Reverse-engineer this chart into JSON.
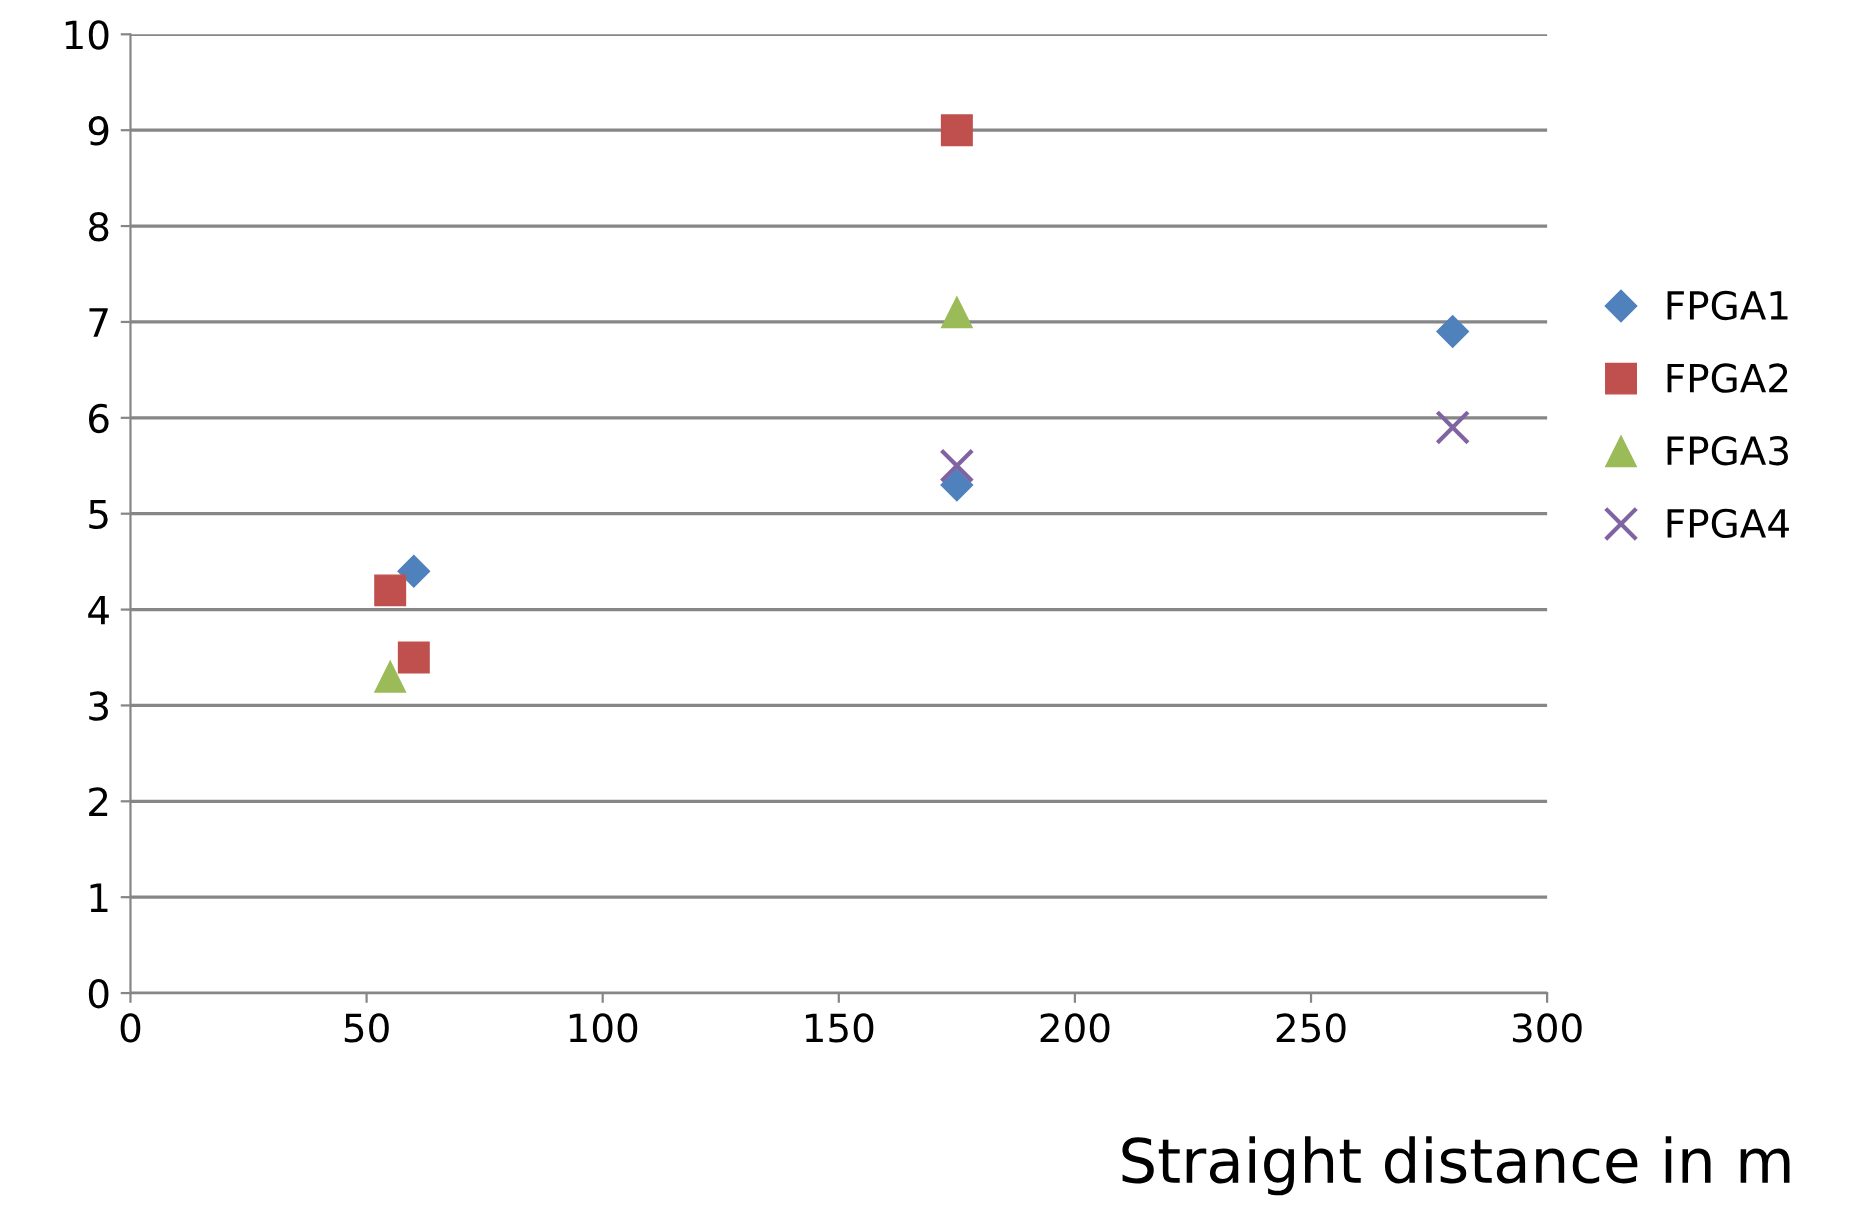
{
  "chart_data": {
    "type": "scatter",
    "xlabel": "Straight distance in m",
    "xlim": [
      0,
      300
    ],
    "xticks": [
      0,
      50,
      100,
      150,
      200,
      250,
      300
    ],
    "ylim": [
      0,
      10
    ],
    "yticks": [
      0,
      1,
      2,
      3,
      4,
      5,
      6,
      7,
      8,
      9,
      10
    ],
    "grid": "y",
    "legend": "right",
    "series": [
      {
        "name": "FPGA1",
        "color": "#4f81bd",
        "marker": "diamond",
        "x": [
          60,
          175,
          280
        ],
        "values": [
          4.4,
          5.3,
          6.9
        ]
      },
      {
        "name": "FPGA2",
        "color": "#c0504d",
        "marker": "square",
        "x": [
          55,
          60,
          175
        ],
        "values": [
          4.2,
          3.5,
          9.0
        ]
      },
      {
        "name": "FPGA3",
        "color": "#9bbb59",
        "marker": "triangle",
        "x": [
          55,
          175
        ],
        "values": [
          3.3,
          7.1
        ]
      },
      {
        "name": "FPGA4",
        "color": "#8064a2",
        "marker": "cross",
        "x": [
          175,
          280
        ],
        "values": [
          5.5,
          5.9
        ]
      }
    ]
  }
}
